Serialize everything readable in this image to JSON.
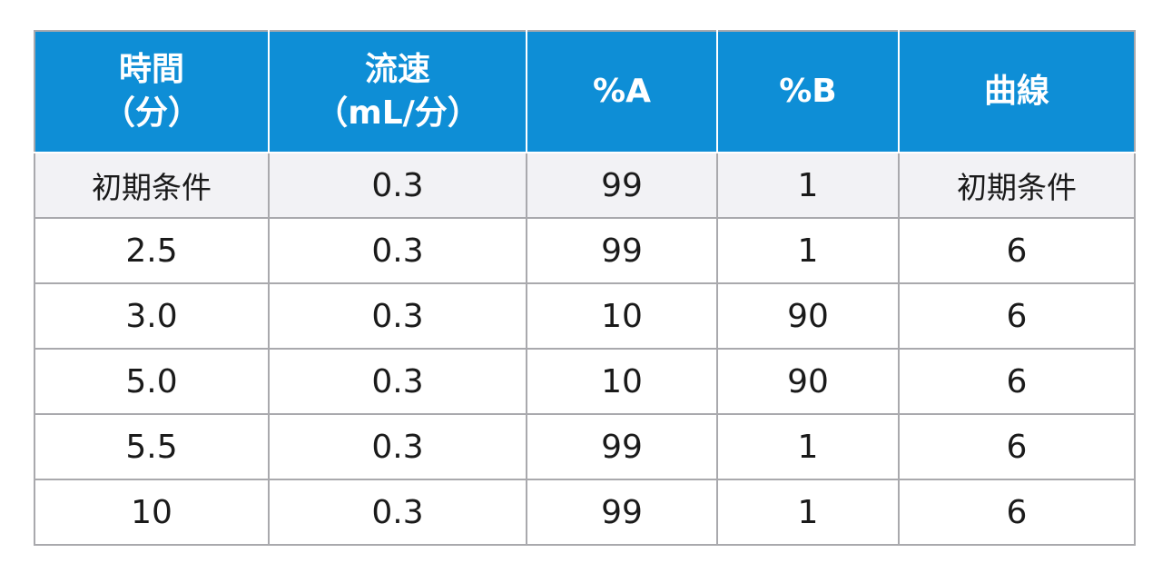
{
  "table": {
    "headers": [
      {
        "lines": [
          "時間",
          "（分）"
        ]
      },
      {
        "lines": [
          "流速",
          "（mL/分）"
        ]
      },
      {
        "lines": [
          "%A"
        ]
      },
      {
        "lines": [
          "%B"
        ]
      },
      {
        "lines": [
          "曲線"
        ]
      }
    ],
    "rows": [
      {
        "cells": [
          "初期条件",
          "0.3",
          "99",
          "1",
          "初期条件"
        ]
      },
      {
        "cells": [
          "2.5",
          "0.3",
          "99",
          "1",
          "6"
        ]
      },
      {
        "cells": [
          "3.0",
          "0.3",
          "10",
          "90",
          "6"
        ]
      },
      {
        "cells": [
          "5.0",
          "0.3",
          "10",
          "90",
          "6"
        ]
      },
      {
        "cells": [
          "5.5",
          "0.3",
          "99",
          "1",
          "6"
        ]
      },
      {
        "cells": [
          "10",
          "0.3",
          "99",
          "1",
          "6"
        ]
      }
    ]
  },
  "colors": {
    "header_bg": "#0e8ed6",
    "header_text": "#ffffff",
    "first_row_bg": "#f2f2f5",
    "border": "#a9a9ad"
  }
}
